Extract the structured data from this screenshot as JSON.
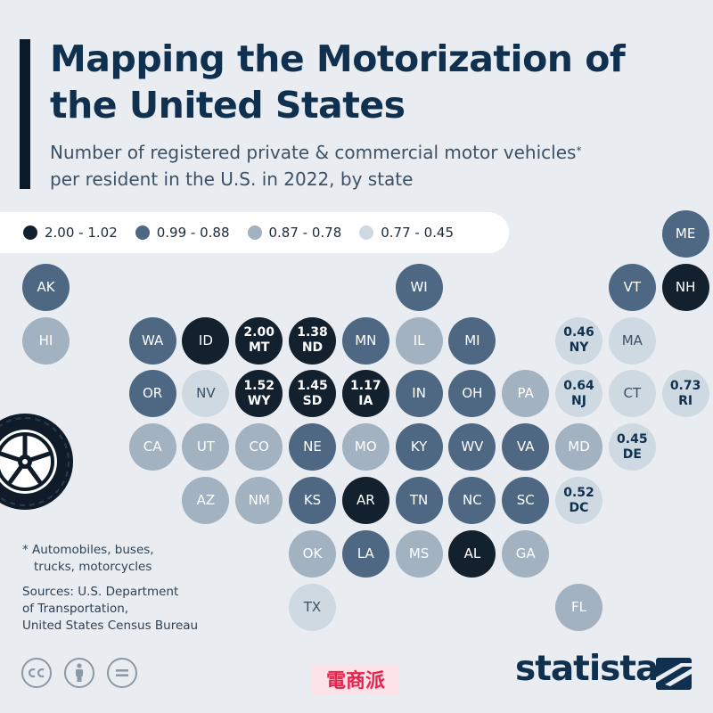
{
  "header": {
    "title": "Mapping the Motorization of the United States",
    "subtitle": "Number of registered private & commercial motor vehicles",
    "subtitle_mark": "*",
    "subtitle_line2": "per resident in the U.S. in 2022, by state"
  },
  "legend": [
    {
      "label": "2.00 - 1.02",
      "color": "#13202e"
    },
    {
      "label": "0.99 - 0.88",
      "color": "#4e6783"
    },
    {
      "label": "0.87 - 0.78",
      "color": "#a2b2c0"
    },
    {
      "label": "0.77 - 0.45",
      "color": "#cfd9e2"
    }
  ],
  "colors": {
    "tier1": "#13202e",
    "tier2": "#4e6783",
    "tier3": "#a2b2c0",
    "tier4": "#cfd9e2",
    "background": "#e9edf1",
    "title": "#10304f"
  },
  "states": [
    {
      "abbr": "ME",
      "tier": 2,
      "col": 12,
      "row": 0,
      "value": ""
    },
    {
      "abbr": "AK",
      "tier": 2,
      "col": 0,
      "row": 1,
      "value": ""
    },
    {
      "abbr": "WI",
      "tier": 2,
      "col": 7,
      "row": 1,
      "value": ""
    },
    {
      "abbr": "VT",
      "tier": 2,
      "col": 11,
      "row": 1,
      "value": ""
    },
    {
      "abbr": "NH",
      "tier": 1,
      "col": 12,
      "row": 1,
      "value": ""
    },
    {
      "abbr": "HI",
      "tier": 3,
      "col": 0,
      "row": 2,
      "value": ""
    },
    {
      "abbr": "WA",
      "tier": 2,
      "col": 2,
      "row": 2,
      "value": ""
    },
    {
      "abbr": "ID",
      "tier": 1,
      "col": 3,
      "row": 2,
      "value": ""
    },
    {
      "abbr": "MT",
      "tier": 1,
      "col": 4,
      "row": 2,
      "value": "2.00"
    },
    {
      "abbr": "ND",
      "tier": 1,
      "col": 5,
      "row": 2,
      "value": "1.38"
    },
    {
      "abbr": "MN",
      "tier": 2,
      "col": 6,
      "row": 2,
      "value": ""
    },
    {
      "abbr": "IL",
      "tier": 3,
      "col": 7,
      "row": 2,
      "value": ""
    },
    {
      "abbr": "MI",
      "tier": 2,
      "col": 8,
      "row": 2,
      "value": ""
    },
    {
      "abbr": "NY",
      "tier": 4,
      "col": 10,
      "row": 2,
      "value": "0.46"
    },
    {
      "abbr": "MA",
      "tier": 4,
      "col": 11,
      "row": 2,
      "value": ""
    },
    {
      "abbr": "OR",
      "tier": 2,
      "col": 2,
      "row": 3,
      "value": ""
    },
    {
      "abbr": "NV",
      "tier": 4,
      "col": 3,
      "row": 3,
      "value": ""
    },
    {
      "abbr": "WY",
      "tier": 1,
      "col": 4,
      "row": 3,
      "value": "1.52"
    },
    {
      "abbr": "SD",
      "tier": 1,
      "col": 5,
      "row": 3,
      "value": "1.45"
    },
    {
      "abbr": "IA",
      "tier": 1,
      "col": 6,
      "row": 3,
      "value": "1.17"
    },
    {
      "abbr": "IN",
      "tier": 2,
      "col": 7,
      "row": 3,
      "value": ""
    },
    {
      "abbr": "OH",
      "tier": 2,
      "col": 8,
      "row": 3,
      "value": ""
    },
    {
      "abbr": "PA",
      "tier": 3,
      "col": 9,
      "row": 3,
      "value": ""
    },
    {
      "abbr": "NJ",
      "tier": 4,
      "col": 10,
      "row": 3,
      "value": "0.64"
    },
    {
      "abbr": "CT",
      "tier": 4,
      "col": 11,
      "row": 3,
      "value": ""
    },
    {
      "abbr": "RI",
      "tier": 4,
      "col": 12,
      "row": 3,
      "value": "0.73"
    },
    {
      "abbr": "CA",
      "tier": 3,
      "col": 2,
      "row": 4,
      "value": ""
    },
    {
      "abbr": "UT",
      "tier": 3,
      "col": 3,
      "row": 4,
      "value": ""
    },
    {
      "abbr": "CO",
      "tier": 3,
      "col": 4,
      "row": 4,
      "value": ""
    },
    {
      "abbr": "NE",
      "tier": 2,
      "col": 5,
      "row": 4,
      "value": ""
    },
    {
      "abbr": "MO",
      "tier": 3,
      "col": 6,
      "row": 4,
      "value": ""
    },
    {
      "abbr": "KY",
      "tier": 2,
      "col": 7,
      "row": 4,
      "value": ""
    },
    {
      "abbr": "WV",
      "tier": 2,
      "col": 8,
      "row": 4,
      "value": ""
    },
    {
      "abbr": "VA",
      "tier": 2,
      "col": 9,
      "row": 4,
      "value": ""
    },
    {
      "abbr": "MD",
      "tier": 3,
      "col": 10,
      "row": 4,
      "value": ""
    },
    {
      "abbr": "DE",
      "tier": 4,
      "col": 11,
      "row": 4,
      "value": "0.45"
    },
    {
      "abbr": "AZ",
      "tier": 3,
      "col": 3,
      "row": 5,
      "value": ""
    },
    {
      "abbr": "NM",
      "tier": 3,
      "col": 4,
      "row": 5,
      "value": ""
    },
    {
      "abbr": "KS",
      "tier": 2,
      "col": 5,
      "row": 5,
      "value": ""
    },
    {
      "abbr": "AR",
      "tier": 1,
      "col": 6,
      "row": 5,
      "value": ""
    },
    {
      "abbr": "TN",
      "tier": 2,
      "col": 7,
      "row": 5,
      "value": ""
    },
    {
      "abbr": "NC",
      "tier": 2,
      "col": 8,
      "row": 5,
      "value": ""
    },
    {
      "abbr": "SC",
      "tier": 2,
      "col": 9,
      "row": 5,
      "value": ""
    },
    {
      "abbr": "DC",
      "tier": 4,
      "col": 10,
      "row": 5,
      "value": "0.52"
    },
    {
      "abbr": "OK",
      "tier": 3,
      "col": 5,
      "row": 6,
      "value": ""
    },
    {
      "abbr": "LA",
      "tier": 2,
      "col": 6,
      "row": 6,
      "value": ""
    },
    {
      "abbr": "MS",
      "tier": 3,
      "col": 7,
      "row": 6,
      "value": ""
    },
    {
      "abbr": "AL",
      "tier": 1,
      "col": 8,
      "row": 6,
      "value": ""
    },
    {
      "abbr": "GA",
      "tier": 3,
      "col": 9,
      "row": 6,
      "value": ""
    },
    {
      "abbr": "TX",
      "tier": 4,
      "col": 5,
      "row": 7,
      "value": ""
    },
    {
      "abbr": "FL",
      "tier": 3,
      "col": 10,
      "row": 7,
      "value": ""
    }
  ],
  "footnote": {
    "line1": "* Automobiles, buses,",
    "line2": "trucks, motorcycles"
  },
  "sources": {
    "line1": "Sources: U.S. Department",
    "line2": "of Transportation,",
    "line3": "United States Census Bureau"
  },
  "icons": {
    "tire": "tire-icon",
    "cc": "cc-license-icon",
    "by": "attribution-icon",
    "nd": "no-derivatives-icon",
    "brand_logo": "statista-logo-icon"
  },
  "brand": {
    "name": "statista"
  },
  "watermark": {
    "text": "電商派"
  }
}
